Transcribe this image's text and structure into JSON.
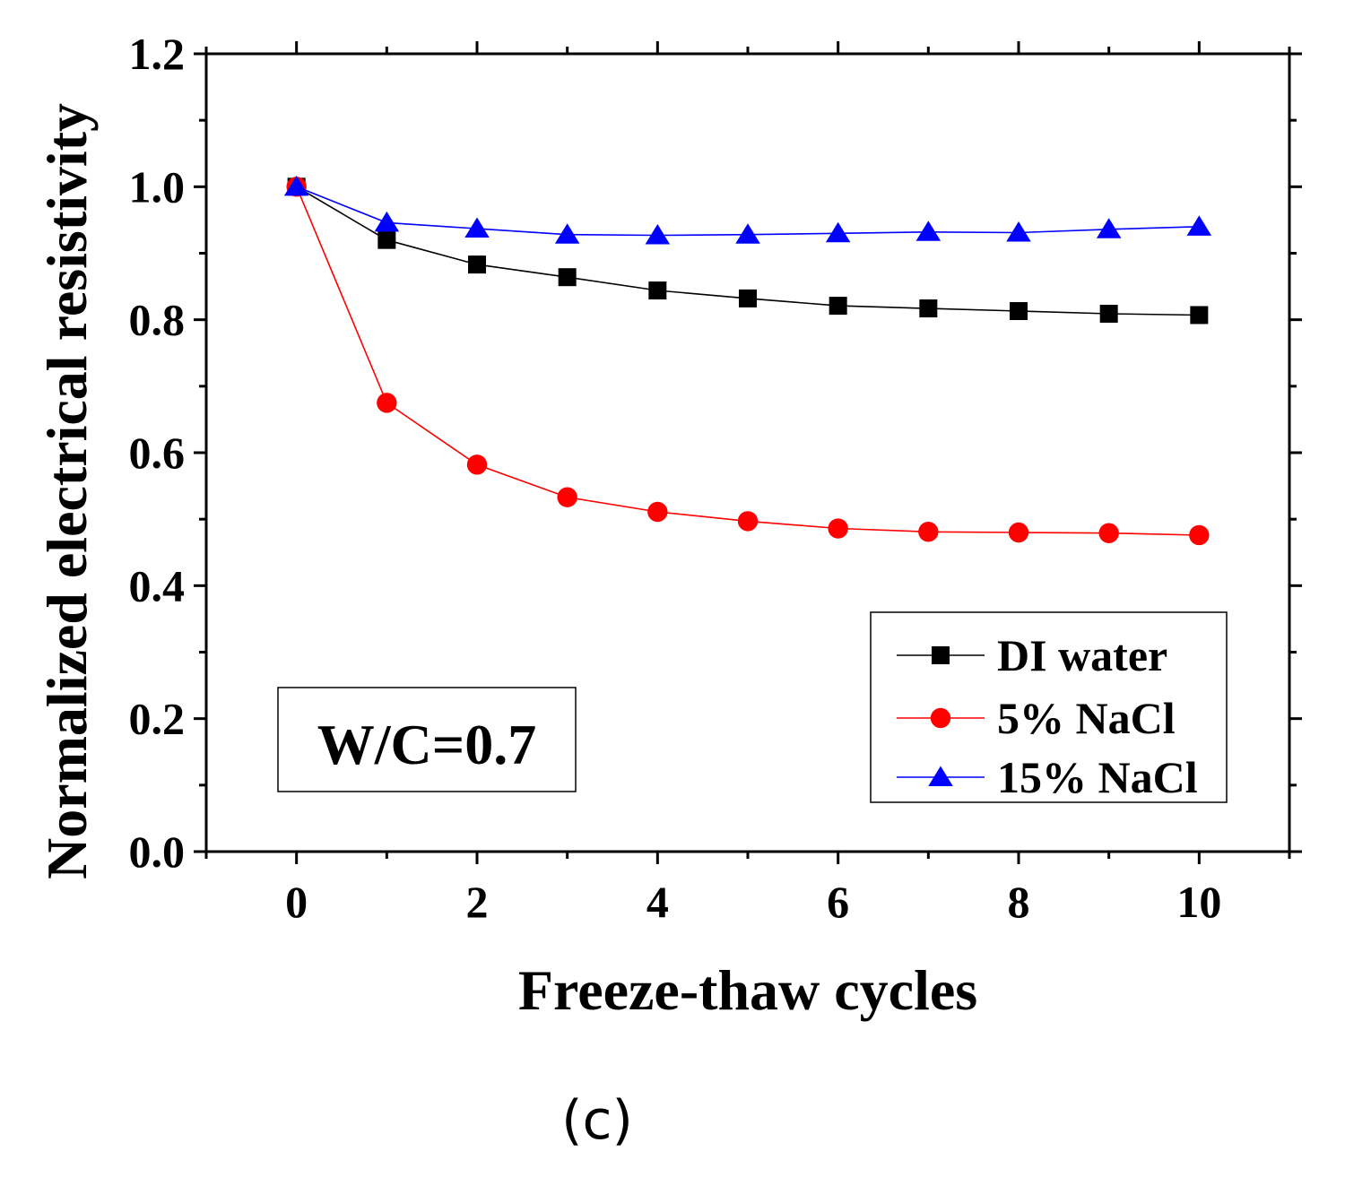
{
  "chart_data": {
    "type": "line",
    "xlabel": "Freeze-thaw cycles",
    "ylabel": "Normalized electrical resistivity",
    "xlim": [
      -1,
      11
    ],
    "ylim": [
      0.0,
      1.2
    ],
    "x_ticks": [
      0,
      2,
      4,
      6,
      8,
      10
    ],
    "x_tick_labels": [
      "0",
      "2",
      "4",
      "6",
      "8",
      "10"
    ],
    "y_ticks": [
      0.0,
      0.2,
      0.4,
      0.6,
      0.8,
      1.0,
      1.2
    ],
    "y_tick_labels": [
      "0.0",
      "0.2",
      "0.4",
      "0.6",
      "0.8",
      "1.0",
      "1.2"
    ],
    "x": [
      0,
      1,
      2,
      3,
      4,
      5,
      6,
      7,
      8,
      9,
      10
    ],
    "series": [
      {
        "name": "DI water",
        "marker": "square",
        "color": "#000000",
        "values": [
          1.0,
          0.92,
          0.883,
          0.864,
          0.844,
          0.832,
          0.821,
          0.817,
          0.813,
          0.809,
          0.807
        ]
      },
      {
        "name": "5% NaCl",
        "marker": "circle",
        "color": "#ff0000",
        "values": [
          1.0,
          0.675,
          0.582,
          0.533,
          0.511,
          0.497,
          0.486,
          0.481,
          0.48,
          0.479,
          0.476
        ]
      },
      {
        "name": "15% NaCl",
        "marker": "triangle",
        "color": "#0000ff",
        "values": [
          1.0,
          0.946,
          0.937,
          0.928,
          0.927,
          0.928,
          0.93,
          0.932,
          0.931,
          0.936,
          0.94
        ]
      }
    ],
    "legend_position": "bottom-right",
    "annotation": "W/C=0.7",
    "caption": "(c)"
  }
}
